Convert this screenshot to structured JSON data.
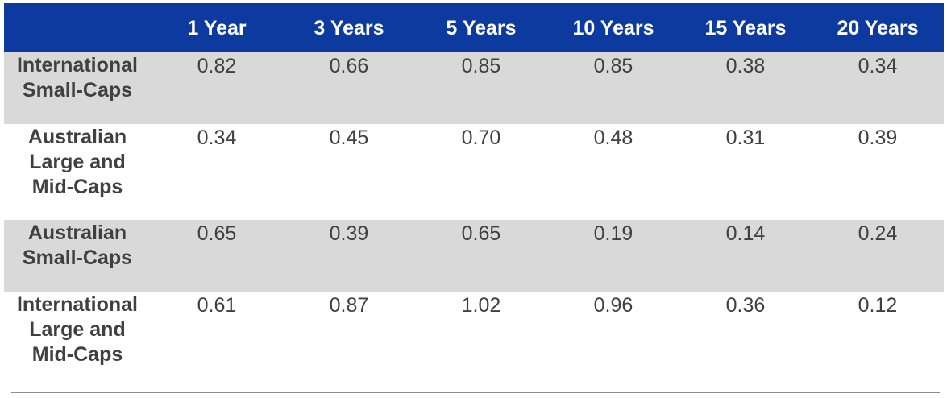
{
  "chart_data": {
    "type": "table",
    "columns": [
      "",
      "1 Year",
      "3 Years",
      "5 Years",
      "10 Years",
      "15 Years",
      "20 Years"
    ],
    "rows": [
      {
        "label": [
          "International",
          "Small-Caps"
        ],
        "values": [
          "0.82",
          "0.66",
          "0.85",
          "0.85",
          "0.38",
          "0.34"
        ],
        "shaded": true
      },
      {
        "label": [
          "Australian",
          "Large and",
          "Mid-Caps"
        ],
        "values": [
          "0.34",
          "0.45",
          "0.70",
          "0.48",
          "0.31",
          "0.39"
        ],
        "shaded": false
      },
      {
        "label": [
          "Australian",
          "Small-Caps"
        ],
        "values": [
          "0.65",
          "0.39",
          "0.65",
          "0.19",
          "0.14",
          "0.24"
        ],
        "shaded": true
      },
      {
        "label": [
          "International",
          "Large and",
          "Mid-Caps"
        ],
        "values": [
          "0.61",
          "0.87",
          "1.02",
          "0.96",
          "0.36",
          "0.12"
        ],
        "shaded": false
      }
    ]
  },
  "colors": {
    "header_background": "#0d3a9e",
    "header_text": "#ffffff",
    "shaded_row": "#d9d9d9",
    "body_text": "#404040"
  }
}
